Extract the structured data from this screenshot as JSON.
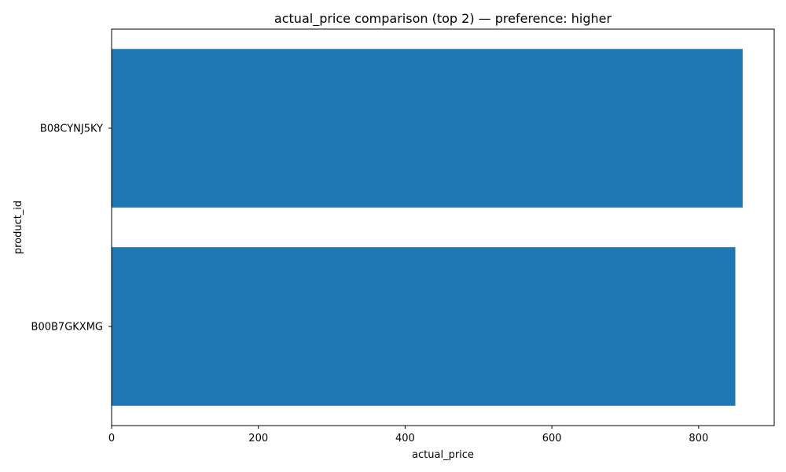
{
  "chart_data": {
    "type": "bar",
    "orientation": "horizontal",
    "title": "actual_price comparison (top 2) — preference: higher",
    "xlabel": "actual_price",
    "ylabel": "product_id",
    "categories": [
      "B08CYNJ5KY",
      "B00B7GKXMG"
    ],
    "values": [
      860,
      850
    ],
    "xlim": [
      0,
      903
    ],
    "xticks": [
      0,
      200,
      400,
      600,
      800
    ],
    "grid": false,
    "bar_color": "#1f77b4"
  }
}
